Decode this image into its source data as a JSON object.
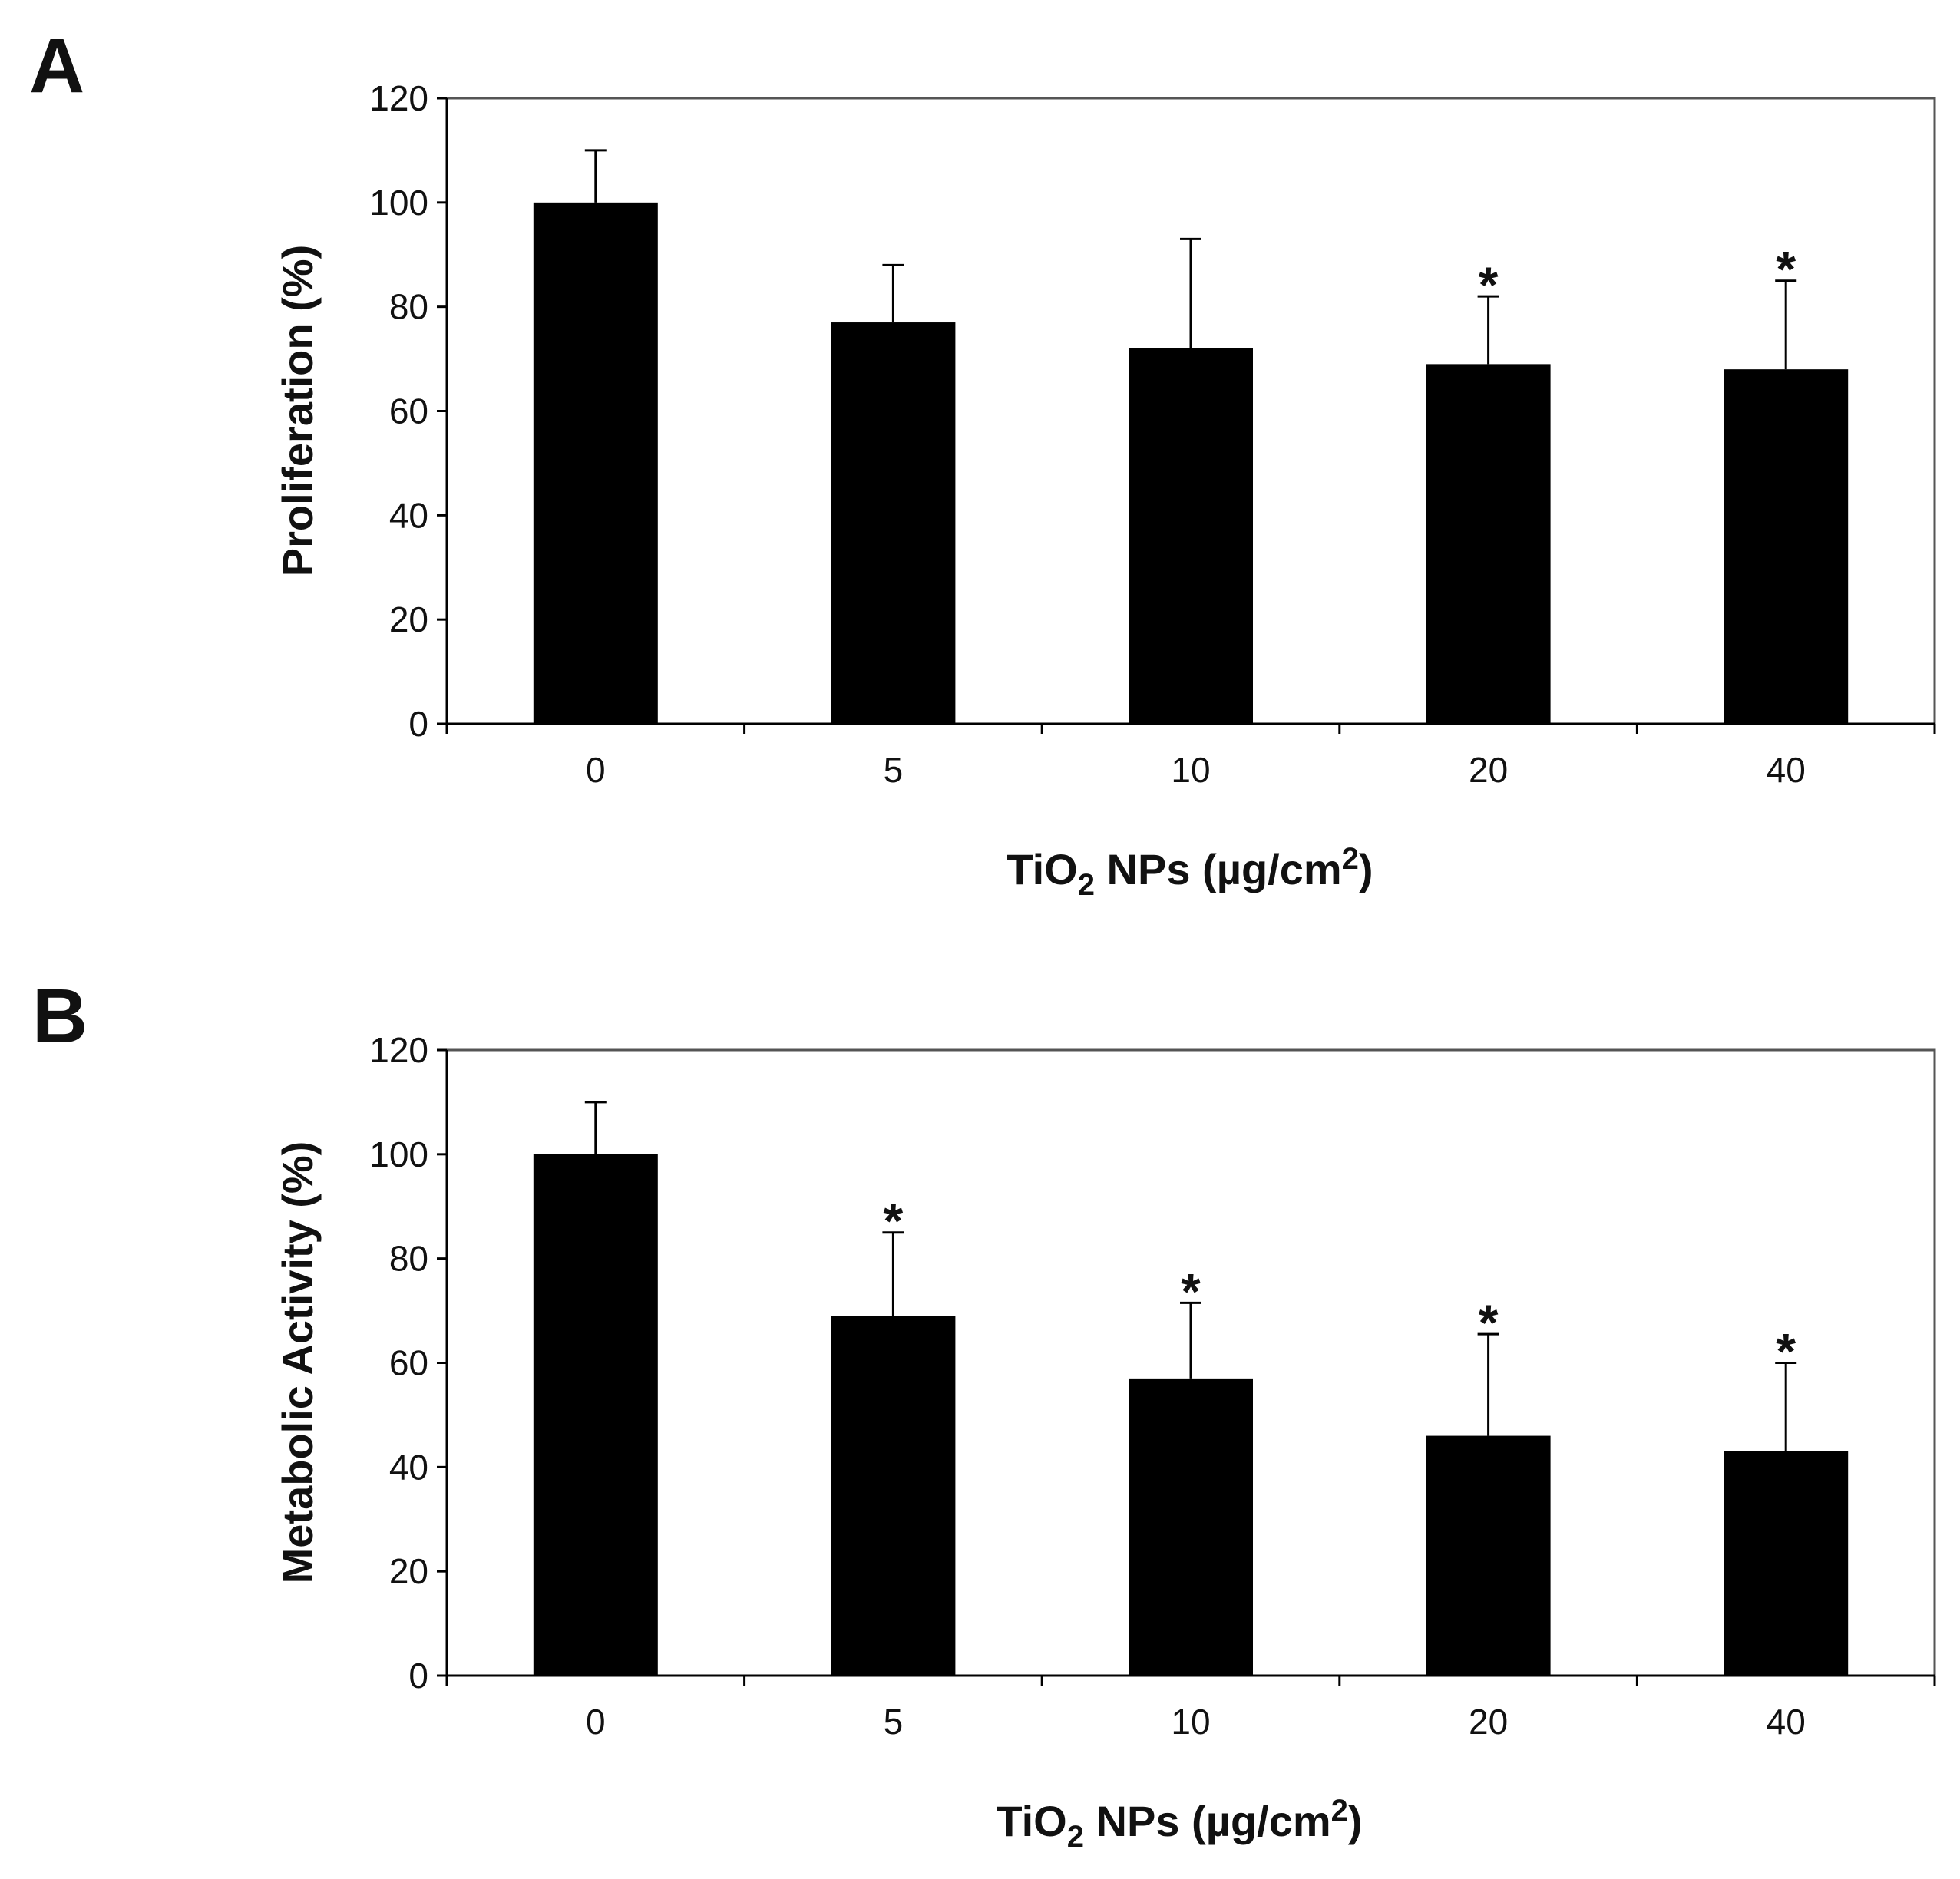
{
  "figure": {
    "bar_color": "#000000",
    "axis_color": "#000000",
    "frame_color": "#555555",
    "background": "#ffffff"
  },
  "chart_data": [
    {
      "panel_label": "A",
      "type": "bar",
      "categories": [
        "0",
        "5",
        "10",
        "20",
        "40"
      ],
      "values": [
        100,
        77,
        72,
        69,
        68
      ],
      "error_plus": [
        10,
        11,
        21,
        13,
        17
      ],
      "significant": [
        false,
        false,
        false,
        true,
        true
      ],
      "significance_marker": "*",
      "xlabel": {
        "base": "TiO",
        "sub": "2",
        "mid": " NPs (µg/cm",
        "sup": "2",
        "end": ")"
      },
      "ylabel": "Proliferation (%)",
      "ylim": [
        0,
        120
      ],
      "yticks": [
        "0",
        "20",
        "40",
        "60",
        "80",
        "100",
        "120"
      ],
      "grid": false
    },
    {
      "panel_label": "B",
      "type": "bar",
      "categories": [
        "0",
        "5",
        "10",
        "20",
        "40"
      ],
      "values": [
        100,
        69,
        57,
        46,
        43
      ],
      "error_plus": [
        10,
        16,
        14.5,
        19.5,
        17
      ],
      "significant": [
        false,
        true,
        true,
        true,
        true
      ],
      "significance_marker": "*",
      "xlabel": {
        "base": "TiO",
        "sub": "2",
        "mid": " NPs (µg/cm",
        "sup": "2",
        "end": ")"
      },
      "ylabel": "Metabolic  Activity  (%)",
      "ylim": [
        0,
        120
      ],
      "yticks": [
        "0",
        "20",
        "40",
        "60",
        "80",
        "100",
        "120"
      ],
      "grid": false
    }
  ]
}
